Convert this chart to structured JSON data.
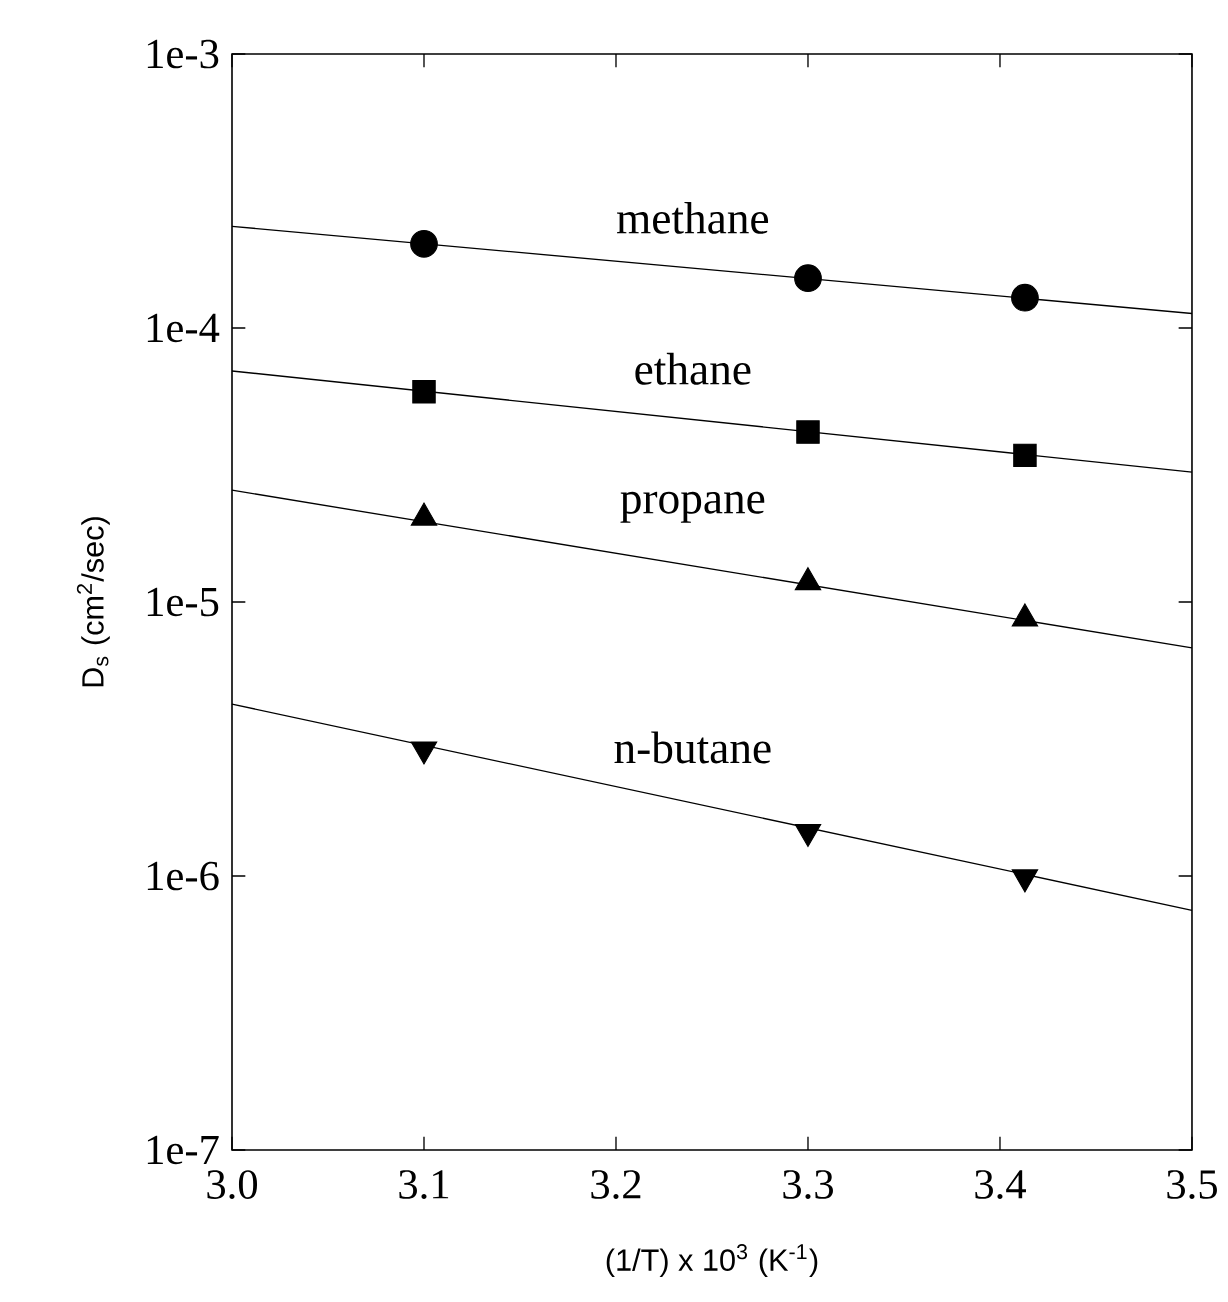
{
  "chart_data": {
    "type": "scatter",
    "xlabel": "(1/T) x 10$^{3}$ (K$^{-1}$)",
    "ylabel": "D$_{s}$ (cm$^{2}$/sec)",
    "log": "y",
    "xlim": [
      3.0,
      3.5
    ],
    "ylim": [
      1e-07,
      0.001
    ],
    "xticks": [
      {
        "value": 3.0,
        "label": "3.0"
      },
      {
        "value": 3.1,
        "label": "3.1"
      },
      {
        "value": 3.2,
        "label": "3.2"
      },
      {
        "value": 3.3,
        "label": "3.3"
      },
      {
        "value": 3.4,
        "label": "3.4"
      },
      {
        "value": 3.5,
        "label": "3.5"
      }
    ],
    "yticks": [
      {
        "value": 1e-07,
        "label": "1e-7"
      },
      {
        "value": 1e-06,
        "label": "1e-6"
      },
      {
        "value": 1e-05,
        "label": "1e-5"
      },
      {
        "value": 0.0001,
        "label": "1e-4"
      },
      {
        "value": 0.001,
        "label": "1e-3"
      }
    ],
    "grid": false,
    "series": [
      {
        "name": "methane",
        "marker": "circle",
        "color": "#000000",
        "x": [
          3.1,
          3.3,
          3.413
        ],
        "values": [
          0.000203,
          0.000152,
          0.000129
        ]
      },
      {
        "name": "ethane",
        "marker": "square",
        "color": "#000000",
        "x": [
          3.1,
          3.3,
          3.413
        ],
        "values": [
          5.85e-05,
          4.17e-05,
          3.43e-05
        ]
      },
      {
        "name": "propane",
        "marker": "triangle",
        "color": "#000000",
        "x": [
          3.1,
          3.3,
          3.413
        ],
        "values": [
          2.03e-05,
          1.18e-05,
          8.7e-06
        ]
      },
      {
        "name": "n-butane",
        "marker": "triangle-down",
        "color": "#000000",
        "x": [
          3.1,
          3.3,
          3.413
        ],
        "values": [
          2.9e-06,
          1.45e-06,
          9.9e-07
        ]
      },
      {
        "type": "line",
        "color": "#000000",
        "line_style": "solid",
        "marker": "none",
        "x": [
          3.0,
          3.5
        ],
        "values": [
          0.000235,
          0.000113
        ]
      },
      {
        "type": "line",
        "color": "#000000",
        "line_style": "solid",
        "marker": "none",
        "x": [
          3.0,
          3.5
        ],
        "values": [
          6.97e-05,
          2.98e-05
        ]
      },
      {
        "type": "line",
        "color": "#000000",
        "line_style": "solid",
        "marker": "none",
        "x": [
          3.0,
          3.5
        ],
        "values": [
          2.56e-05,
          6.8e-06
        ]
      },
      {
        "type": "line",
        "color": "#000000",
        "line_style": "solid",
        "marker": "none",
        "x": [
          3.0,
          3.5
        ],
        "values": [
          4.24e-06,
          7.5e-07
        ]
      }
    ]
  }
}
